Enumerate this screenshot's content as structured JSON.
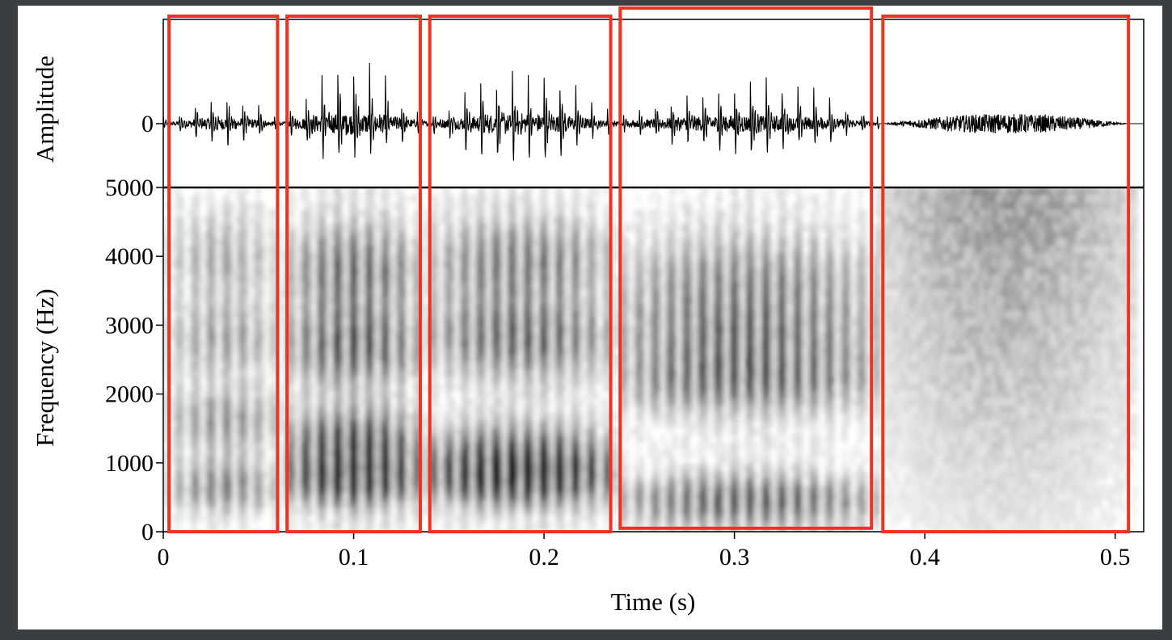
{
  "chart_data": {
    "type": "spectrogram",
    "waveform": {
      "ylabel": "Amplitude",
      "yticks": [
        {
          "value": 0,
          "label": "0"
        }
      ]
    },
    "spectrogram": {
      "xlabel": "Time (s)",
      "ylabel": "Frequency (Hz)",
      "xlim": [
        0,
        0.515
      ],
      "ylim": [
        0,
        5000
      ],
      "xticks": [
        {
          "value": 0,
          "label": "0"
        },
        {
          "value": 0.1,
          "label": "0.1"
        },
        {
          "value": 0.2,
          "label": "0.2"
        },
        {
          "value": 0.3,
          "label": "0.3"
        },
        {
          "value": 0.4,
          "label": "0.4"
        },
        {
          "value": 0.5,
          "label": "0.5"
        }
      ],
      "yticks": [
        {
          "value": 0,
          "label": "0"
        },
        {
          "value": 1000,
          "label": "1000"
        },
        {
          "value": 2000,
          "label": "2000"
        },
        {
          "value": 3000,
          "label": "3000"
        },
        {
          "value": 4000,
          "label": "4000"
        },
        {
          "value": 5000,
          "label": "5000"
        }
      ],
      "segments": [
        {
          "t0": 0.003,
          "t1": 0.06,
          "voiced": true,
          "intensity": 0.55,
          "formants": [
            650,
            1600,
            2800,
            4000
          ]
        },
        {
          "t0": 0.065,
          "t1": 0.135,
          "voiced": true,
          "intensity": 1.0,
          "formants": [
            750,
            1300,
            2700,
            3800
          ]
        },
        {
          "t0": 0.14,
          "t1": 0.235,
          "voiced": true,
          "intensity": 0.9,
          "formants": [
            750,
            1100,
            2800,
            3900
          ]
        },
        {
          "t0": 0.24,
          "t1": 0.372,
          "voiced": true,
          "intensity": 0.75,
          "formants": [
            450,
            2200,
            2900,
            3700
          ]
        },
        {
          "t0": 0.378,
          "t1": 0.507,
          "voiced": false,
          "intensity": 0.45,
          "formants": []
        }
      ]
    },
    "highlight_boxes": [
      {
        "t0": 0.003,
        "t1": 0.06,
        "f_low": 0,
        "f_high": 5000
      },
      {
        "t0": 0.065,
        "t1": 0.135,
        "f_low": 0,
        "f_high": 5000
      },
      {
        "t0": 0.14,
        "t1": 0.235,
        "f_low": 0,
        "f_high": 5000
      },
      {
        "t0": 0.24,
        "t1": 0.372,
        "f_low": 50,
        "f_high": 5000
      },
      {
        "t0": 0.378,
        "t1": 0.507,
        "f_low": 0,
        "f_high": 5000
      }
    ],
    "colors": {
      "box": "#ee3322",
      "ink": "#000000",
      "figure_bg": "#ffffff",
      "page_bg": "#3a3e40"
    }
  }
}
